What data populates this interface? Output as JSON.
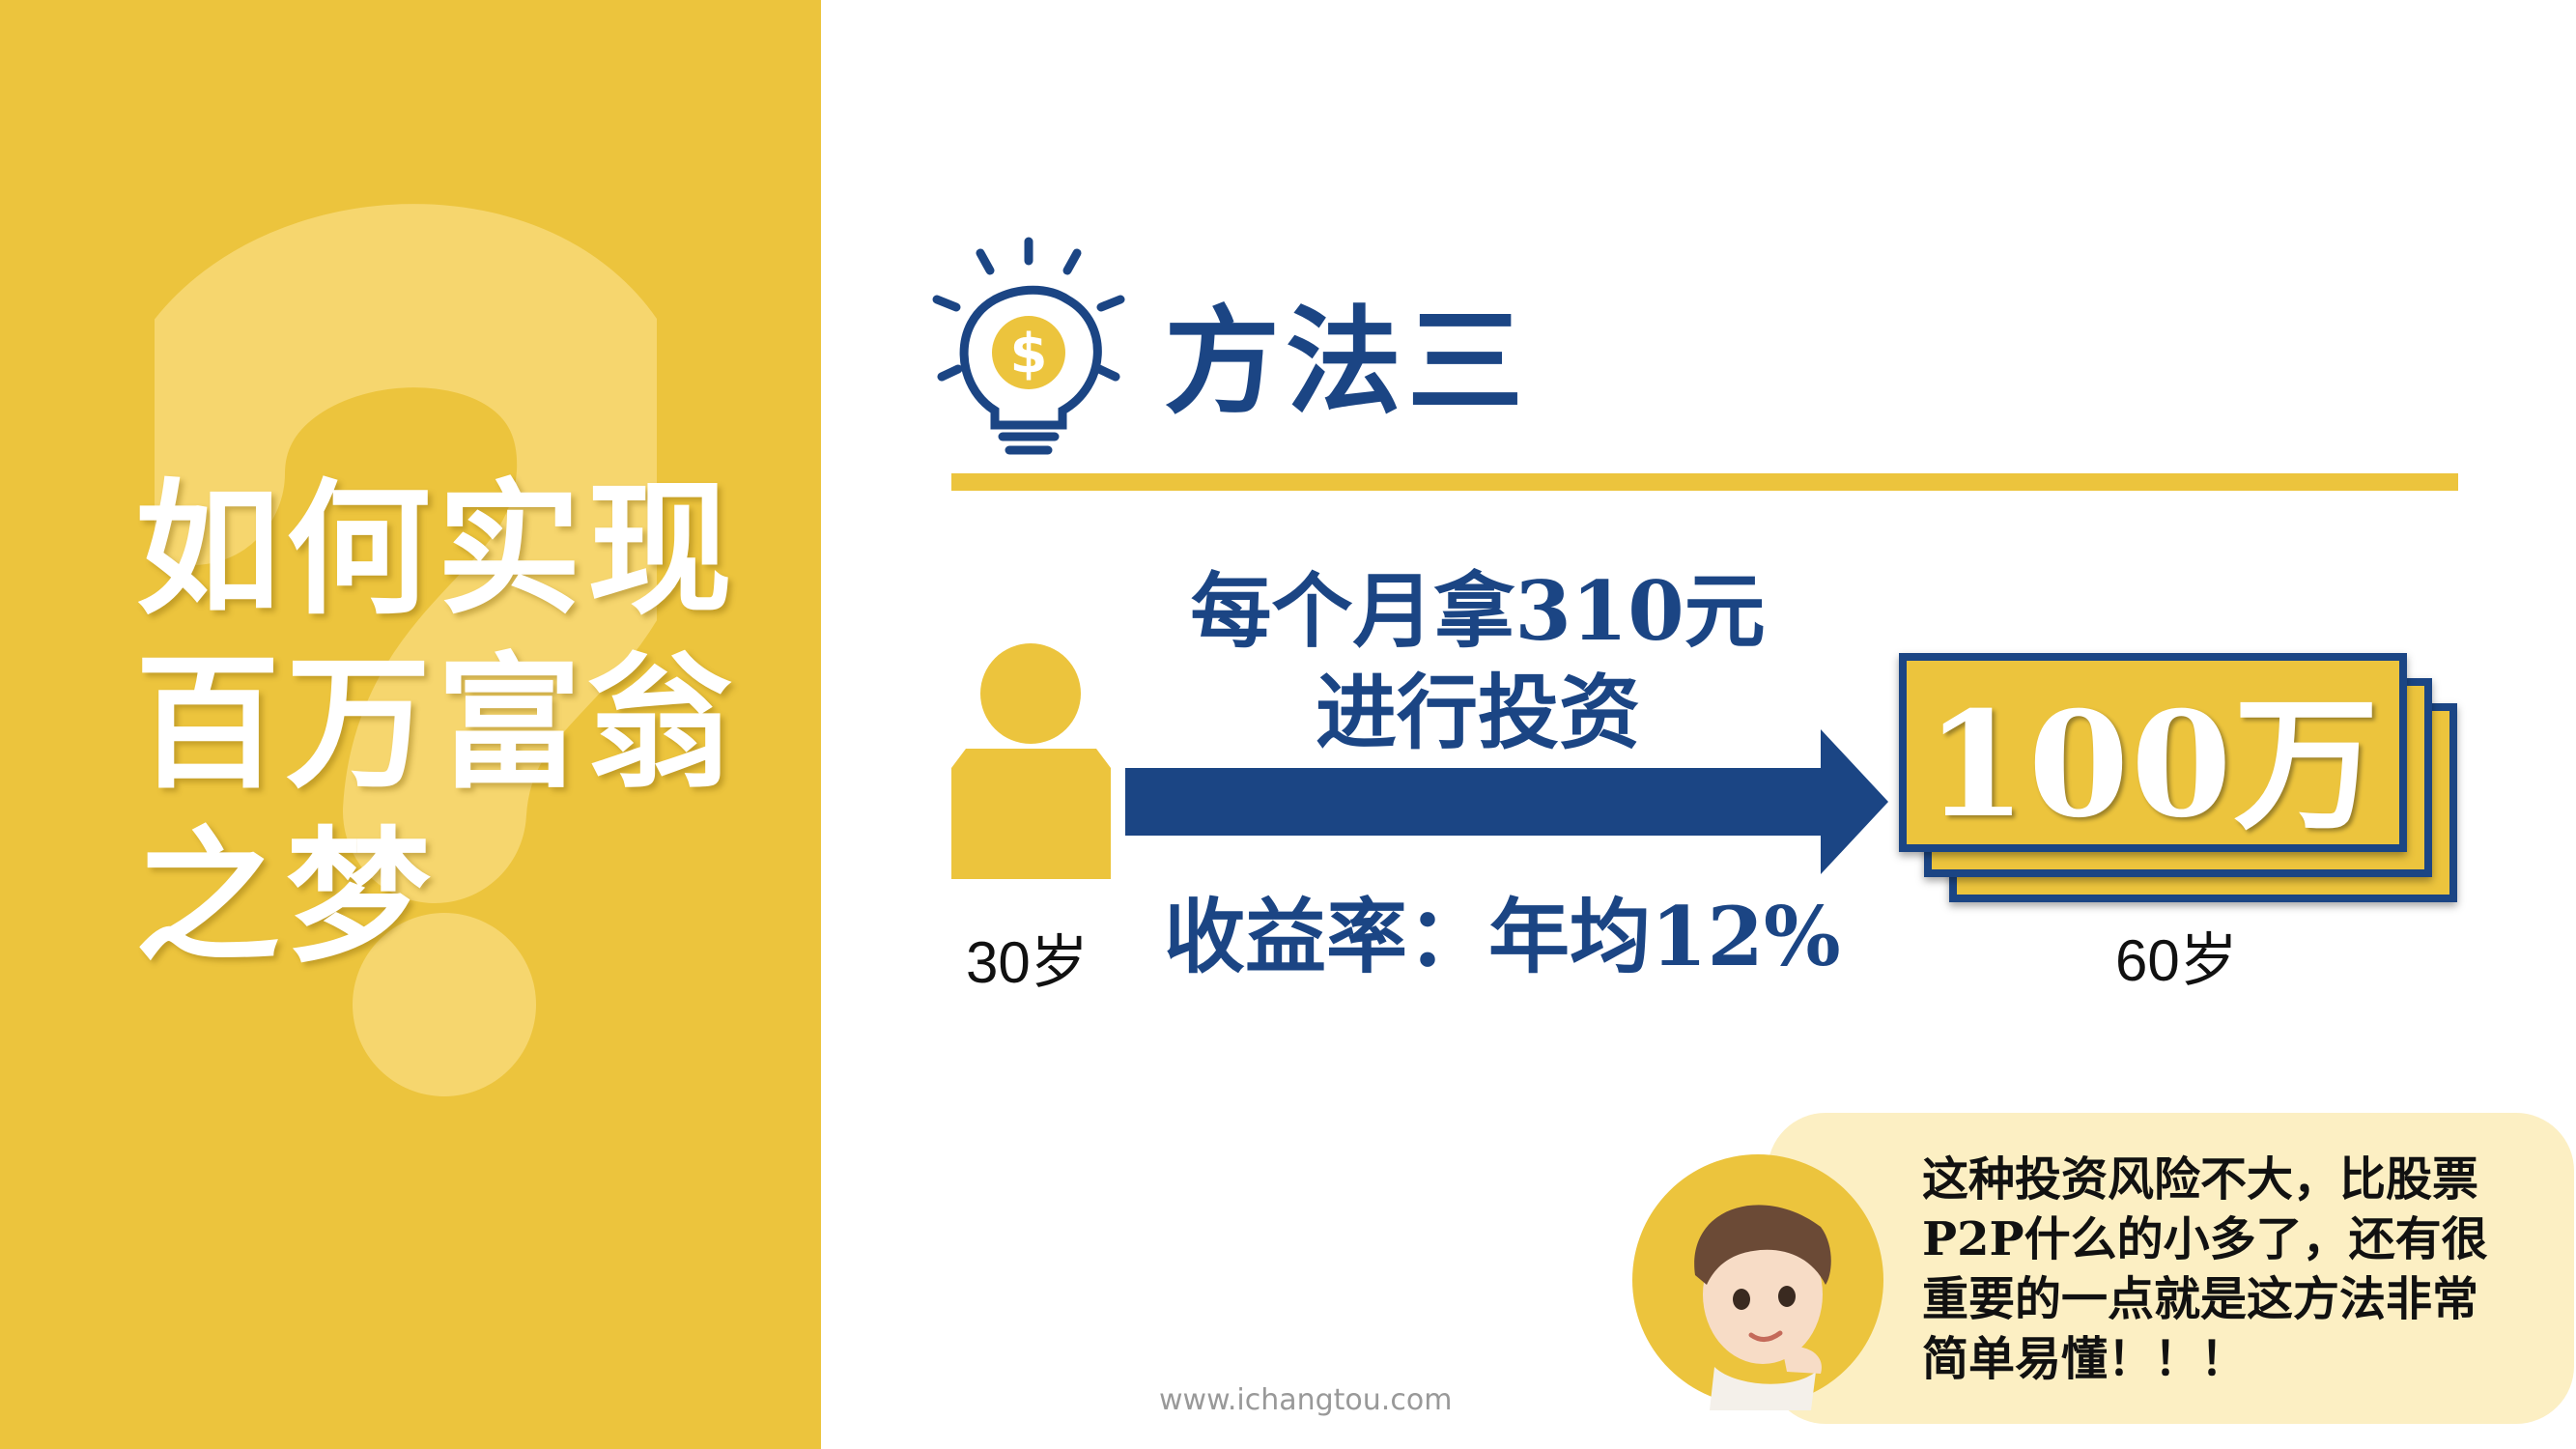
{
  "title": {
    "lines": [
      "如何实现",
      "百万富翁",
      "之梦"
    ]
  },
  "section": {
    "heading": "方法三"
  },
  "plan": {
    "invest_lines": [
      "每个月拿310元",
      "进行投资"
    ],
    "return_rate": "收益率：年均12%",
    "start_age": "30岁",
    "end_age": "60岁",
    "target_amount": "100万"
  },
  "bubble": {
    "lines": [
      "这种投资风险不大，比股票",
      "P2P什么的小多了，还有很",
      "重要的一点就是这方法非常",
      "简单易懂！！！"
    ]
  },
  "footer": {
    "watermark": "www.ichangtou.com"
  },
  "icons": [
    "question-mark-icon",
    "lightbulb-dollar-icon",
    "person-icon",
    "arrow-right-icon",
    "avatar-icon"
  ],
  "colors": {
    "accent_yellow": "#ecc43d",
    "navy": "#1b4584",
    "bubble_bg": "#fcefc3",
    "white": "#ffffff"
  }
}
